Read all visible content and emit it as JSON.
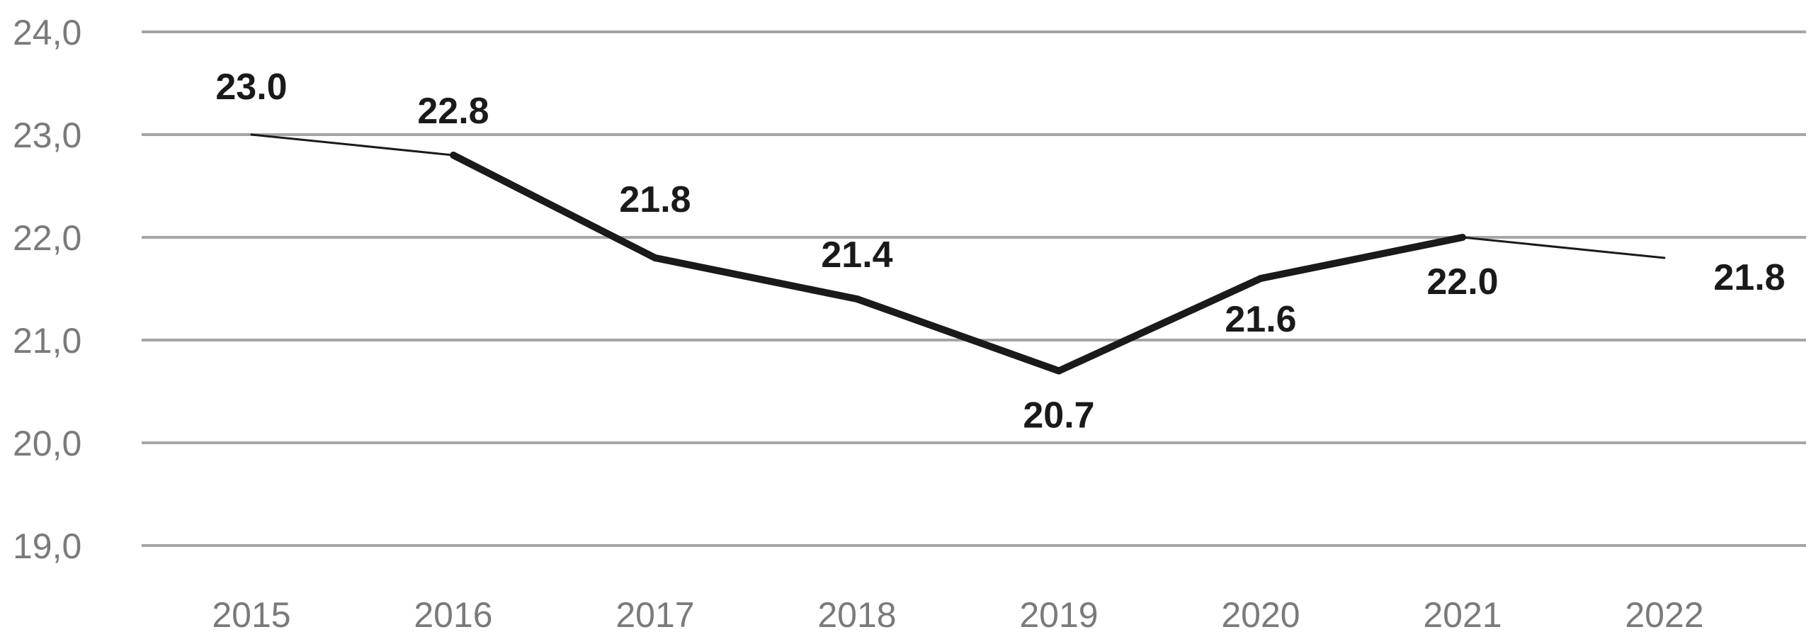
{
  "chart_data": {
    "type": "line",
    "title": "",
    "xlabel": "",
    "ylabel": "",
    "categories": [
      "2015",
      "2016",
      "2017",
      "2018",
      "2019",
      "2020",
      "2021",
      "2022"
    ],
    "series": [
      {
        "values": [
          23.0,
          22.8,
          21.8,
          21.4,
          20.7,
          21.6,
          22.0,
          21.8
        ],
        "labels": [
          "23.0",
          "22.8",
          "21.8",
          "21.4",
          "20.7",
          "21.6",
          "22.0",
          "21.8"
        ],
        "color": "#1a1a1a"
      }
    ],
    "ylim": [
      19.0,
      24.0
    ],
    "yticks": [
      19.0,
      20.0,
      21.0,
      22.0,
      23.0,
      24.0
    ],
    "ytick_labels": [
      "19,0",
      "20,0",
      "21,0",
      "22,0",
      "23,0",
      "24,0"
    ],
    "grid": true,
    "legend": "none"
  },
  "colors": {
    "gridline": "#a6a6a6",
    "tick_text": "#7a7a7a",
    "line": "#1a1a1a"
  }
}
